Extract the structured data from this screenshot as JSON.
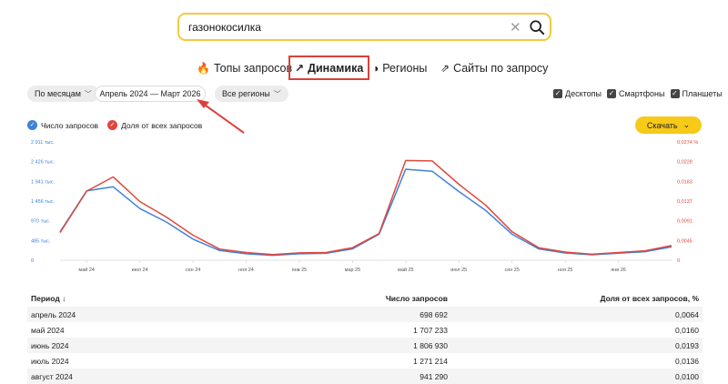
{
  "search": {
    "value": "газонокосилка",
    "clear_icon": "close-icon",
    "search_icon": "search-icon"
  },
  "tabs": [
    {
      "icon": "🔥",
      "label": "Топы запросов"
    },
    {
      "icon": "↗",
      "label": "Динамика",
      "active": true
    },
    {
      "icon": "◑",
      "label": "Регионы"
    },
    {
      "icon": "⇗",
      "label": "Сайты по запросу"
    }
  ],
  "filters": {
    "grouping": "По месяцам",
    "period": "Апрель 2024 — Март 2026",
    "regions": "Все регионы",
    "devices": [
      "Десктопы",
      "Смартфоны",
      "Планшеты"
    ]
  },
  "legend": {
    "series1": "Число запросов",
    "series2": "Доля от всех запросов"
  },
  "download_label": "Скачать",
  "colors": {
    "series1": "#3d82d9",
    "series2": "#e0473c",
    "download": "#f7c919",
    "annotation": "#d9413a"
  },
  "chart_data": {
    "type": "line",
    "x": [
      "апр 24",
      "май 24",
      "июн 24",
      "июл 24",
      "авг 24",
      "сен 24",
      "окт 24",
      "ноя 24",
      "дек 24",
      "янв 25",
      "фев 25",
      "мар 25",
      "апр 25",
      "май 25",
      "июн 25",
      "июл 25",
      "авг 25",
      "сен 25",
      "окт 25",
      "ноя 25",
      "дек 25",
      "янв 26",
      "фев 26",
      "мар 26"
    ],
    "x_tick_labels": [
      "май 24",
      "июл 24",
      "сен 24",
      "ноя 24",
      "янв 25",
      "мар 25",
      "май 25",
      "июл 25",
      "сен 25",
      "ноя 25",
      "янв 26"
    ],
    "series": [
      {
        "name": "Число запросов",
        "axis": "left",
        "values": [
          698692,
          1707233,
          1806930,
          1271214,
          941290,
          520000,
          240000,
          160000,
          120000,
          160000,
          170000,
          280000,
          640000,
          2240000,
          2190000,
          1690000,
          1230000,
          640000,
          280000,
          180000,
          135000,
          175000,
          210000,
          330000
        ]
      },
      {
        "name": "Доля от всех запросов",
        "axis": "right",
        "values": [
          0.0064,
          0.016,
          0.0193,
          0.0136,
          0.01,
          0.0058,
          0.0026,
          0.0018,
          0.0013,
          0.0017,
          0.0018,
          0.0029,
          0.0062,
          0.0231,
          0.023,
          0.0176,
          0.0128,
          0.0066,
          0.0029,
          0.0019,
          0.0014,
          0.0018,
          0.0022,
          0.0034
        ]
      }
    ],
    "y_left_ticks": [
      "0",
      "485 тыс.",
      "970 тыс.",
      "1 456 тыс.",
      "1 941 тыс.",
      "2 426 тыс.",
      "2 911 тыс."
    ],
    "y_right_ticks": [
      "0",
      "0,0045",
      "0,0091",
      "0,0137",
      "0,0183",
      "0,0228",
      "0,0274 %"
    ],
    "ylim_left": [
      0,
      2911000
    ],
    "ylim_right": [
      0,
      0.0274
    ],
    "grid": false
  },
  "table": {
    "headers": [
      "Период ↓",
      "Число запросов",
      "Доля от всех запросов, %"
    ],
    "rows": [
      [
        "апрель 2024",
        "698 692",
        "0,0064"
      ],
      [
        "май 2024",
        "1 707 233",
        "0,0160"
      ],
      [
        "июнь 2024",
        "1 806 930",
        "0,0193"
      ],
      [
        "июль 2024",
        "1 271 214",
        "0,0136"
      ],
      [
        "август 2024",
        "941 290",
        "0,0100"
      ]
    ]
  }
}
